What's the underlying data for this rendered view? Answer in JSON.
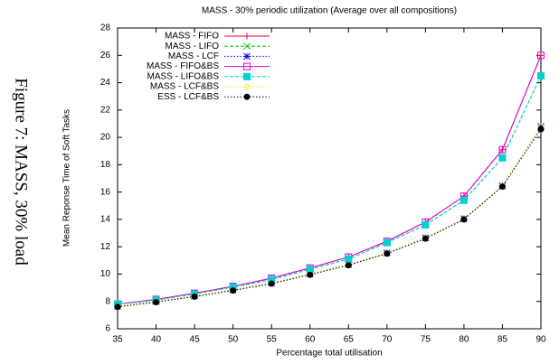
{
  "caption": "Figure 7: MASS, 30% load",
  "chart_data": {
    "type": "line",
    "title": "MASS - 30% periodic utilization (Average over all compositions)",
    "x_label": "Percentage total utilisation",
    "y_label": "Mean Reponse Time of Soft Tasks",
    "x": [
      35,
      40,
      45,
      50,
      55,
      60,
      65,
      70,
      75,
      80,
      85,
      90
    ],
    "xlim": [
      35,
      90
    ],
    "xticks": [
      35,
      40,
      45,
      50,
      55,
      60,
      65,
      70,
      75,
      80,
      85,
      90
    ],
    "ylim": [
      6,
      28
    ],
    "yticks": [
      6,
      8,
      10,
      12,
      14,
      16,
      18,
      20,
      22,
      24,
      26,
      28
    ],
    "legend": "top-left",
    "series": [
      {
        "name": "MASS - FIFO",
        "color": "#e8002a",
        "marker": "plus",
        "dash": "solid",
        "values": [
          7.8,
          8.15,
          8.6,
          9.1,
          9.7,
          10.45,
          11.25,
          12.4,
          13.8,
          15.7,
          19.1,
          26.0
        ]
      },
      {
        "name": "MASS - LIFO",
        "color": "#00c000",
        "marker": "cross",
        "dash": "dashed",
        "values": [
          7.8,
          8.1,
          8.55,
          9.05,
          9.6,
          10.35,
          11.1,
          12.3,
          13.6,
          15.4,
          18.5,
          24.5
        ]
      },
      {
        "name": "MASS - LCF",
        "color": "#0000ff",
        "marker": "star",
        "dash": "dotted",
        "values": [
          7.65,
          8.0,
          8.4,
          8.85,
          9.35,
          10.0,
          10.7,
          11.55,
          12.65,
          14.05,
          16.45,
          20.8
        ]
      },
      {
        "name": "MASS - FIFO&BS",
        "color": "#e000e0",
        "marker": "box",
        "dash": "solid",
        "values": [
          7.8,
          8.15,
          8.6,
          9.1,
          9.7,
          10.45,
          11.25,
          12.4,
          13.8,
          15.7,
          19.1,
          26.0
        ]
      },
      {
        "name": "MASS - LIFO&BS",
        "color": "#00d0d0",
        "marker": "square",
        "dash": "dashed",
        "values": [
          7.8,
          8.1,
          8.55,
          9.05,
          9.6,
          10.35,
          11.1,
          12.3,
          13.6,
          15.4,
          18.5,
          24.5
        ]
      },
      {
        "name": "MASS - LCF&BS",
        "color": "#f0f000",
        "marker": "circle",
        "dash": "dotted",
        "values": [
          7.65,
          8.0,
          8.4,
          8.85,
          9.35,
          10.0,
          10.7,
          11.55,
          12.65,
          14.05,
          16.45,
          20.8
        ]
      },
      {
        "name": "ESS - LCF&BS",
        "color": "#000000",
        "marker": "dot",
        "dash": "dotted",
        "values": [
          7.6,
          7.95,
          8.35,
          8.8,
          9.3,
          9.95,
          10.65,
          11.5,
          12.6,
          14.0,
          16.4,
          20.6
        ]
      }
    ]
  }
}
